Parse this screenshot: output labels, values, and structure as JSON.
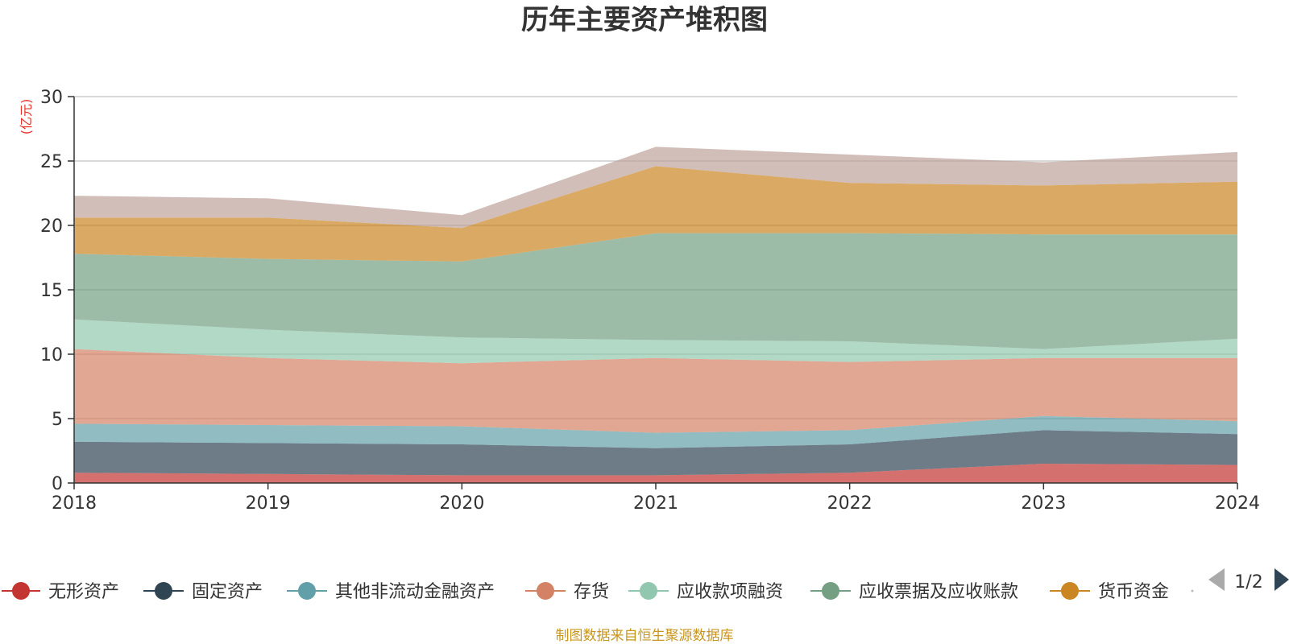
{
  "chart_data": {
    "type": "area",
    "stacked": true,
    "title": "历年主要资产堆积图",
    "unit_label": "(亿元)",
    "x": [
      "2018",
      "2019",
      "2020",
      "2021",
      "2022",
      "2023",
      "2024"
    ],
    "ylim": [
      0,
      30
    ],
    "yticks": [
      0,
      5,
      10,
      15,
      20,
      25,
      30
    ],
    "grid": true,
    "legend_position": "bottom",
    "legend_page": "1/2",
    "source_note": "制图数据来自恒生聚源数据库",
    "series": [
      {
        "name": "无形资产",
        "color": "#c23531",
        "values": [
          0.8,
          0.7,
          0.6,
          0.6,
          0.8,
          1.5,
          1.4
        ]
      },
      {
        "name": "固定资产",
        "color": "#2f4554",
        "values": [
          2.4,
          2.4,
          2.4,
          2.1,
          2.2,
          2.6,
          2.4
        ]
      },
      {
        "name": "其他非流动金融资产",
        "color": "#61a0a8",
        "values": [
          1.4,
          1.4,
          1.4,
          1.2,
          1.1,
          1.1,
          1.0
        ]
      },
      {
        "name": "存货",
        "color": "#d48265",
        "values": [
          5.8,
          5.2,
          4.9,
          5.8,
          5.3,
          4.5,
          4.9
        ]
      },
      {
        "name": "应收款项融资",
        "color": "#91c7ae",
        "values": [
          2.3,
          2.2,
          2.0,
          1.4,
          1.6,
          0.7,
          1.5
        ]
      },
      {
        "name": "应收票据及应收账款",
        "color": "#749f83",
        "values": [
          5.1,
          5.5,
          5.9,
          8.3,
          8.4,
          8.9,
          8.1
        ]
      },
      {
        "name": "货币资金",
        "color": "#ca8622",
        "values": [
          2.8,
          3.2,
          2.6,
          5.2,
          3.9,
          3.8,
          4.1
        ]
      },
      {
        "name": "",
        "color": "#bda29a",
        "values": [
          1.7,
          1.5,
          1.0,
          1.5,
          2.2,
          1.8,
          2.3
        ]
      }
    ]
  }
}
